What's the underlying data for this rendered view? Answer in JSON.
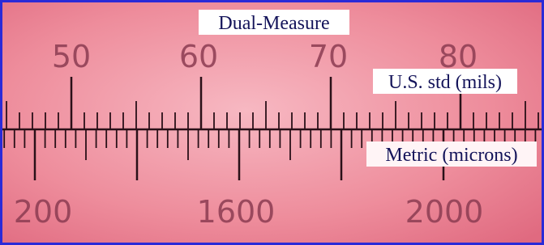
{
  "title": "Dual-Measure",
  "top_scale": {
    "caption": "U.S. std (mils)",
    "labels": [
      "50",
      "60",
      "70",
      "80"
    ]
  },
  "bottom_scale": {
    "caption": "Metric (microns)",
    "labels": [
      "200",
      "1600",
      "2000"
    ]
  }
}
